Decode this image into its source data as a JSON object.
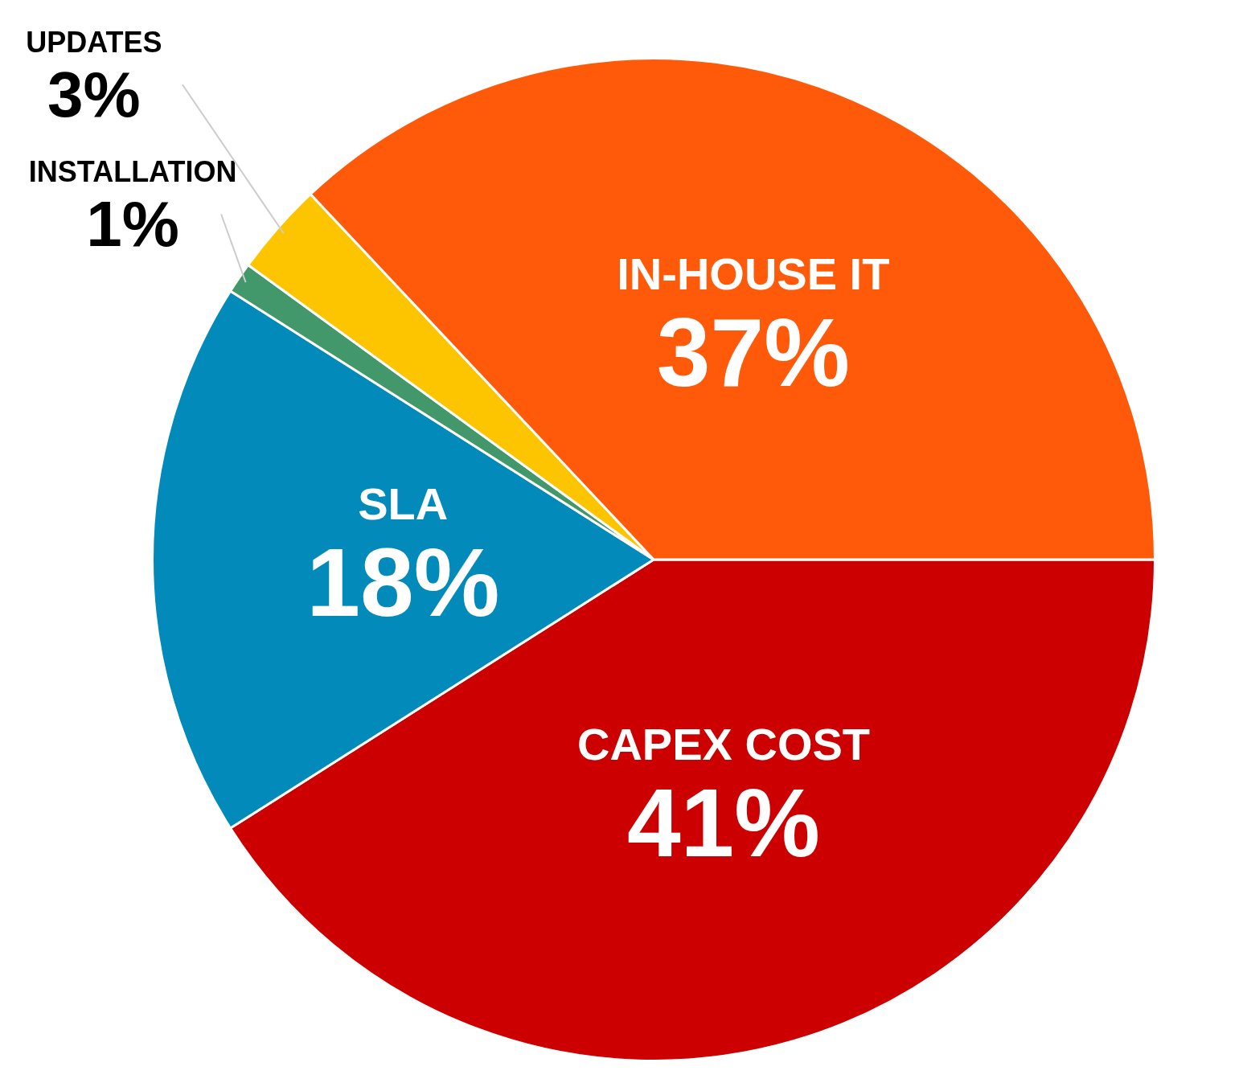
{
  "chart_data": {
    "type": "pie",
    "categories": [
      "CAPEX COST",
      "SLA",
      "INSTALLATION",
      "UPDATES",
      "IN-HOUSE IT"
    ],
    "values": [
      41,
      18,
      1,
      3,
      37
    ],
    "colors": [
      "#cc0000",
      "#028bba",
      "#43986b",
      "#fdc500",
      "#ff5a0a"
    ],
    "value_labels": [
      "41%",
      "18%",
      "1%",
      "3%",
      "37%"
    ],
    "legend": false
  }
}
